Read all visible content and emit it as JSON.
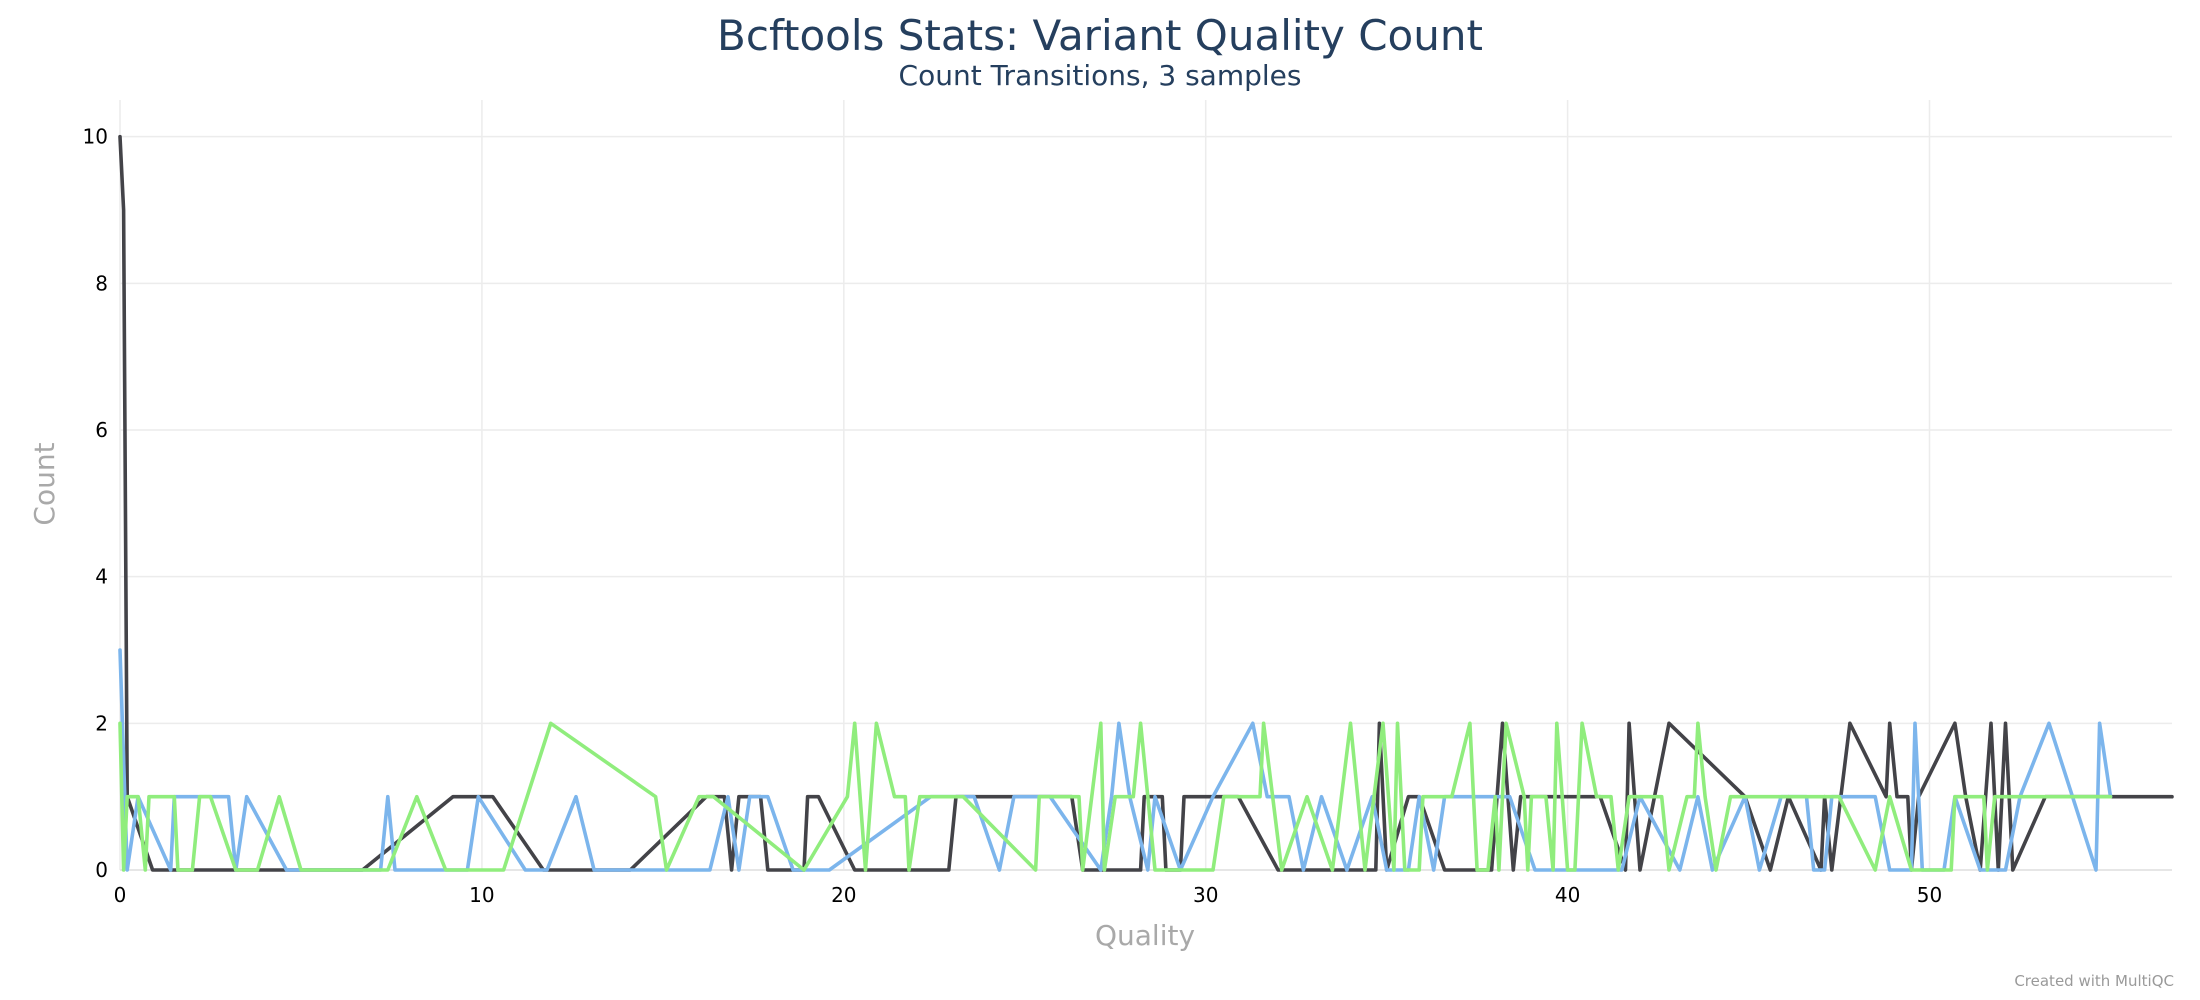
{
  "chart_data": {
    "type": "line",
    "title": "Bcftools Stats: Variant Quality Count",
    "subtitle": "Count Transitions, 3 samples",
    "xlabel": "Quality",
    "ylabel": "Count",
    "xlim": [
      0,
      56.7
    ],
    "ylim": [
      0,
      10.5
    ],
    "x_ticks": [
      "0",
      "10",
      "20",
      "30",
      "40",
      "50"
    ],
    "y_ticks": [
      "0",
      "2",
      "4",
      "6",
      "8",
      "10"
    ],
    "grid": true,
    "legend": "none",
    "series": [
      {
        "color": "#434348",
        "points": [
          [
            0,
            10
          ],
          [
            0.1,
            9
          ],
          [
            0.2,
            1
          ],
          [
            0.9,
            0
          ],
          [
            6.7,
            0
          ],
          [
            9.2,
            1
          ],
          [
            10.3,
            1
          ],
          [
            11.7,
            0
          ],
          [
            14.1,
            0
          ],
          [
            16.2,
            1
          ],
          [
            16.7,
            1
          ],
          [
            16.9,
            0
          ],
          [
            17.1,
            1
          ],
          [
            17.7,
            1
          ],
          [
            17.9,
            0
          ],
          [
            18.9,
            0
          ],
          [
            19.0,
            1
          ],
          [
            19.3,
            1
          ],
          [
            20.3,
            0
          ],
          [
            22.9,
            0
          ],
          [
            23.1,
            1
          ],
          [
            26.3,
            1
          ],
          [
            26.6,
            0
          ],
          [
            28.2,
            0
          ],
          [
            28.3,
            1
          ],
          [
            28.8,
            1
          ],
          [
            28.9,
            0
          ],
          [
            29.3,
            0
          ],
          [
            29.4,
            1
          ],
          [
            30.9,
            1
          ],
          [
            32.0,
            0
          ],
          [
            34.7,
            0
          ],
          [
            34.8,
            2
          ],
          [
            35.0,
            0
          ],
          [
            35.6,
            1
          ],
          [
            35.9,
            1
          ],
          [
            36.6,
            0
          ],
          [
            37.9,
            0
          ],
          [
            38.2,
            2
          ],
          [
            38.5,
            0
          ],
          [
            38.7,
            1
          ],
          [
            40.9,
            1
          ],
          [
            41.6,
            0
          ],
          [
            41.7,
            2
          ],
          [
            42.0,
            0
          ],
          [
            42.8,
            2
          ],
          [
            44.9,
            1
          ],
          [
            45.6,
            0
          ],
          [
            46.1,
            1
          ],
          [
            47.0,
            0
          ],
          [
            47.1,
            1
          ],
          [
            47.3,
            0
          ],
          [
            47.8,
            2
          ],
          [
            48.8,
            1
          ],
          [
            48.9,
            2
          ],
          [
            49.1,
            1
          ],
          [
            49.4,
            1
          ],
          [
            49.5,
            0
          ],
          [
            49.7,
            1
          ],
          [
            50.7,
            2
          ],
          [
            51.0,
            1
          ],
          [
            51.4,
            0
          ],
          [
            51.7,
            2
          ],
          [
            51.9,
            0
          ],
          [
            52.1,
            2
          ],
          [
            52.3,
            0
          ],
          [
            53.2,
            1
          ],
          [
            56.7,
            1
          ]
        ]
      },
      {
        "color": "#7cb5ec",
        "points": [
          [
            0,
            3
          ],
          [
            0.2,
            0
          ],
          [
            0.5,
            1
          ],
          [
            1.4,
            0
          ],
          [
            1.5,
            1
          ],
          [
            3.0,
            1
          ],
          [
            3.2,
            0
          ],
          [
            3.5,
            1
          ],
          [
            4.6,
            0
          ],
          [
            7.2,
            0
          ],
          [
            7.4,
            1
          ],
          [
            7.6,
            0
          ],
          [
            9.6,
            0
          ],
          [
            9.9,
            1
          ],
          [
            11.2,
            0
          ],
          [
            11.8,
            0
          ],
          [
            12.6,
            1
          ],
          [
            13.1,
            0
          ],
          [
            16.3,
            0
          ],
          [
            16.8,
            1
          ],
          [
            17.1,
            0
          ],
          [
            17.4,
            1
          ],
          [
            17.9,
            1
          ],
          [
            18.6,
            0
          ],
          [
            19.6,
            0
          ],
          [
            22.4,
            1
          ],
          [
            23.6,
            1
          ],
          [
            24.3,
            0
          ],
          [
            24.7,
            1
          ],
          [
            25.7,
            1
          ],
          [
            27.1,
            0
          ],
          [
            27.4,
            1
          ],
          [
            27.6,
            2
          ],
          [
            27.9,
            1
          ],
          [
            28.4,
            0
          ],
          [
            28.6,
            1
          ],
          [
            29.3,
            0
          ],
          [
            30.2,
            1
          ],
          [
            31.3,
            2
          ],
          [
            31.7,
            1
          ],
          [
            32.3,
            1
          ],
          [
            32.7,
            0
          ],
          [
            33.2,
            1
          ],
          [
            33.9,
            0
          ],
          [
            34.6,
            1
          ],
          [
            35.0,
            0
          ],
          [
            35.6,
            0
          ],
          [
            35.9,
            1
          ],
          [
            36.3,
            0
          ],
          [
            36.6,
            1
          ],
          [
            38.4,
            1
          ],
          [
            39.1,
            0
          ],
          [
            41.5,
            0
          ],
          [
            42.0,
            1
          ],
          [
            43.1,
            0
          ],
          [
            43.6,
            1
          ],
          [
            44.0,
            0
          ],
          [
            44.9,
            1
          ],
          [
            45.3,
            0
          ],
          [
            45.9,
            1
          ],
          [
            46.6,
            1
          ],
          [
            46.8,
            0
          ],
          [
            47.1,
            0
          ],
          [
            47.3,
            1
          ],
          [
            48.5,
            1
          ],
          [
            48.9,
            0
          ],
          [
            49.5,
            0
          ],
          [
            49.6,
            2
          ],
          [
            49.8,
            0
          ],
          [
            50.4,
            0
          ],
          [
            50.7,
            1
          ],
          [
            51.4,
            0
          ],
          [
            52.1,
            0
          ],
          [
            52.5,
            1
          ],
          [
            53.3,
            2
          ],
          [
            54.6,
            0
          ],
          [
            54.7,
            2
          ],
          [
            55.0,
            1
          ]
        ]
      },
      {
        "color": "#90ed7d",
        "points": [
          [
            0,
            2
          ],
          [
            0.1,
            0
          ],
          [
            0.2,
            1
          ],
          [
            0.5,
            1
          ],
          [
            0.7,
            0
          ],
          [
            0.8,
            1
          ],
          [
            1.5,
            1
          ],
          [
            1.6,
            0
          ],
          [
            2.0,
            0
          ],
          [
            2.2,
            1
          ],
          [
            2.5,
            1
          ],
          [
            3.2,
            0
          ],
          [
            3.8,
            0
          ],
          [
            4.4,
            1
          ],
          [
            5.0,
            0
          ],
          [
            5.9,
            0
          ],
          [
            6.8,
            0
          ],
          [
            7.4,
            0
          ],
          [
            8.2,
            1
          ],
          [
            9.0,
            0
          ],
          [
            10.6,
            0
          ],
          [
            11.9,
            2
          ],
          [
            14.8,
            1
          ],
          [
            15.1,
            0
          ],
          [
            16.0,
            1
          ],
          [
            16.4,
            1
          ],
          [
            18.9,
            0
          ],
          [
            20.1,
            1
          ],
          [
            20.3,
            2
          ],
          [
            20.6,
            0
          ],
          [
            20.9,
            2
          ],
          [
            21.4,
            1
          ],
          [
            21.7,
            1
          ],
          [
            21.8,
            0
          ],
          [
            22.1,
            1
          ],
          [
            23.3,
            1
          ],
          [
            25.3,
            0
          ],
          [
            25.4,
            1
          ],
          [
            26.5,
            1
          ],
          [
            26.6,
            0
          ],
          [
            27.1,
            2
          ],
          [
            27.2,
            0
          ],
          [
            27.5,
            1
          ],
          [
            28.0,
            1
          ],
          [
            28.2,
            2
          ],
          [
            28.6,
            0
          ],
          [
            30.2,
            0
          ],
          [
            30.5,
            1
          ],
          [
            31.5,
            1
          ],
          [
            31.6,
            2
          ],
          [
            32.1,
            0
          ],
          [
            32.8,
            1
          ],
          [
            33.5,
            0
          ],
          [
            34.0,
            2
          ],
          [
            34.4,
            0
          ],
          [
            34.9,
            2
          ],
          [
            35.2,
            0
          ],
          [
            35.3,
            2
          ],
          [
            35.5,
            0
          ],
          [
            35.9,
            0
          ],
          [
            36.0,
            1
          ],
          [
            36.8,
            1
          ],
          [
            37.3,
            2
          ],
          [
            37.5,
            0
          ],
          [
            37.8,
            0
          ],
          [
            38.0,
            1
          ],
          [
            38.1,
            0
          ],
          [
            38.3,
            2
          ],
          [
            38.8,
            1
          ],
          [
            38.9,
            0
          ],
          [
            39.0,
            1
          ],
          [
            39.4,
            1
          ],
          [
            39.6,
            0
          ],
          [
            39.7,
            2
          ],
          [
            40.0,
            0
          ],
          [
            40.2,
            0
          ],
          [
            40.4,
            2
          ],
          [
            40.8,
            1
          ],
          [
            41.2,
            1
          ],
          [
            41.4,
            0
          ],
          [
            41.7,
            1
          ],
          [
            42.6,
            1
          ],
          [
            42.8,
            0
          ],
          [
            43.3,
            1
          ],
          [
            43.5,
            1
          ],
          [
            43.6,
            2
          ],
          [
            43.8,
            1
          ],
          [
            44.1,
            0
          ],
          [
            44.5,
            1
          ],
          [
            47.5,
            1
          ],
          [
            48.5,
            0
          ],
          [
            48.9,
            1
          ],
          [
            49.5,
            0
          ],
          [
            50.6,
            0
          ],
          [
            50.7,
            1
          ],
          [
            51.5,
            1
          ],
          [
            51.6,
            0
          ],
          [
            51.8,
            1
          ],
          [
            55.0,
            1
          ]
        ]
      }
    ]
  },
  "credit": "Created with MultiQC"
}
